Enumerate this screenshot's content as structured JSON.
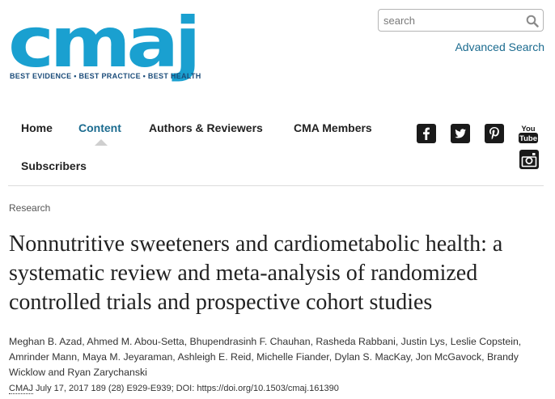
{
  "brand": {
    "logo_text": "cmaj",
    "tagline": "BEST EVIDENCE • BEST PRACTICE • BEST HEALTH",
    "color": "#1aa0d0"
  },
  "search": {
    "placeholder": "search",
    "value": "",
    "advanced_label": "Advanced Search",
    "icon": "search-icon"
  },
  "nav": {
    "items": [
      {
        "label": "Home",
        "active": false
      },
      {
        "label": "Content",
        "active": true
      },
      {
        "label": "Authors & Reviewers",
        "active": false
      },
      {
        "label": "CMA Members",
        "active": false
      },
      {
        "label": "Subscribers",
        "active": false
      }
    ],
    "active_color": "#1b6b8f"
  },
  "social": [
    "facebook-icon",
    "twitter-icon",
    "pinterest-icon",
    "youtube-icon",
    "instagram-icon"
  ],
  "social_youtube": {
    "line1": "You",
    "line2": "Tube"
  },
  "article": {
    "section": "Research",
    "title": "Nonnutritive sweeteners and cardiometabolic health: a systematic review and meta-analysis of randomized controlled trials and prospective cohort studies",
    "authors": "Meghan B. Azad, Ahmed M. Abou-Setta, Bhupendrasinh F. Chauhan, Rasheda Rabbani, Justin Lys, Leslie Copstein, Amrinder Mann, Maya M. Jeyaraman, Ashleigh E. Reid, Michelle Fiander, Dylan S. MacKay, Jon McGavock, Brandy Wicklow and Ryan Zarychanski",
    "citation_journal": "CMAJ",
    "citation_rest": " July 17, 2017 189 (28) E929-E939; DOI: https://doi.org/10.1503/cmaj.161390"
  }
}
